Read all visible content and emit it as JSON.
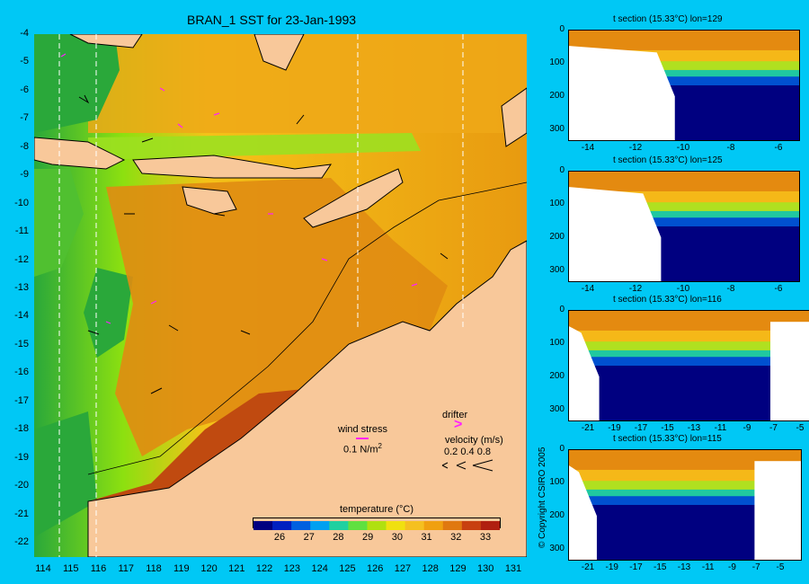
{
  "main_title": "BRAN_1 SST for 23-Jan-1993",
  "main_map": {
    "lat_ticks": [
      "-4",
      "-5",
      "-6",
      "-7",
      "-8",
      "-9",
      "-10",
      "-11",
      "-12",
      "-13",
      "-14",
      "-15",
      "-16",
      "-17",
      "-18",
      "-19",
      "-20",
      "-21",
      "-22"
    ],
    "lon_ticks": [
      "114",
      "115",
      "116",
      "117",
      "118",
      "119",
      "120",
      "121",
      "122",
      "123",
      "124",
      "125",
      "126",
      "127",
      "128",
      "129",
      "130",
      "131"
    ],
    "colors": {
      "warm": "#e48a10",
      "mid": "#f5c218",
      "cool": "#8ce010",
      "green": "#2aa83a",
      "land": "#f8c89a",
      "hot": "#b42808"
    }
  },
  "legend": {
    "wind_label": "wind stress",
    "wind_value": "0.1 N/m",
    "wind_unit_sup": "2",
    "drifter_label": "drifter",
    "velocity_label": "velocity (m/s)",
    "velocity_values": "0.2 0.4 0.8"
  },
  "colorbar": {
    "label": "temperature (°C)",
    "ticks": [
      "26",
      "27",
      "28",
      "29",
      "30",
      "31",
      "32",
      "33"
    ],
    "colors": [
      "#000080",
      "#0020c0",
      "#0060e0",
      "#00a0f0",
      "#20d0a0",
      "#60e040",
      "#b0e010",
      "#f0e010",
      "#f5c020",
      "#f0a010",
      "#e07810",
      "#c84010",
      "#b02010"
    ]
  },
  "copyright": "© Copyright CSIRO 2005",
  "sections": [
    {
      "title": "t section (15.33°C) lon=129",
      "xticks": [
        "-14",
        "-12",
        "-10",
        "-8",
        "-6"
      ],
      "yticks": [
        "0",
        "100",
        "200",
        "300"
      ]
    },
    {
      "title": "t section (15.33°C) lon=125",
      "xticks": [
        "-14",
        "-12",
        "-10",
        "-8",
        "-6"
      ],
      "yticks": [
        "0",
        "100",
        "200",
        "300"
      ]
    },
    {
      "title": "t section (15.33°C) lon=116",
      "xticks": [
        "-21",
        "-19",
        "-17",
        "-15",
        "-13",
        "-11",
        "-9",
        "-7",
        "-5"
      ],
      "yticks": [
        "0",
        "100",
        "200",
        "300"
      ]
    },
    {
      "title": "t section (15.33°C) lon=115",
      "xticks": [
        "-21",
        "-19",
        "-17",
        "-15",
        "-13",
        "-11",
        "-9",
        "-7",
        "-5"
      ],
      "yticks": [
        "0",
        "100",
        "200",
        "300"
      ]
    }
  ]
}
